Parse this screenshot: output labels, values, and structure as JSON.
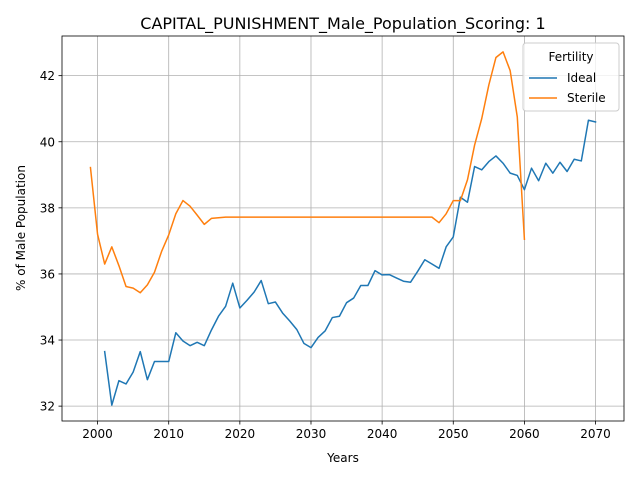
{
  "chart_data": {
    "type": "line",
    "title": "CAPITAL_PUNISHMENT_Male_Population_Scoring: 1",
    "xlabel": "Years",
    "ylabel": "% of Male Population",
    "xlim": [
      1995,
      2074
    ],
    "ylim": [
      31.55,
      43.2
    ],
    "xticks": [
      2000,
      2010,
      2020,
      2030,
      2040,
      2050,
      2060,
      2070
    ],
    "yticks": [
      32,
      34,
      36,
      38,
      40,
      42
    ],
    "grid": true,
    "legend": {
      "title": "Fertility",
      "placement": "top-right"
    },
    "series": [
      {
        "name": "Ideal",
        "color": "#1f77b4",
        "x": [
          2001,
          2002,
          2003,
          2004,
          2005,
          2006,
          2007,
          2008,
          2009,
          2010,
          2011,
          2012,
          2013,
          2014,
          2015,
          2016,
          2017,
          2018,
          2019,
          2020,
          2021,
          2022,
          2023,
          2024,
          2025,
          2026,
          2027,
          2028,
          2029,
          2030,
          2031,
          2032,
          2033,
          2034,
          2035,
          2036,
          2037,
          2038,
          2039,
          2040,
          2041,
          2042,
          2043,
          2044,
          2045,
          2046,
          2047,
          2048,
          2049,
          2050,
          2051,
          2052,
          2053,
          2054,
          2055,
          2056,
          2057,
          2058,
          2059,
          2060,
          2061,
          2062,
          2063,
          2064,
          2065,
          2066,
          2067,
          2068,
          2069,
          2070
        ],
        "y": [
          33.65,
          32.03,
          32.77,
          32.67,
          33.03,
          33.65,
          32.8,
          33.35,
          33.35,
          33.35,
          34.22,
          33.97,
          33.83,
          33.93,
          33.83,
          34.3,
          34.72,
          35.02,
          35.72,
          34.97,
          35.2,
          35.45,
          35.8,
          35.1,
          35.15,
          34.82,
          34.58,
          34.32,
          33.9,
          33.77,
          34.08,
          34.28,
          34.68,
          34.72,
          35.13,
          35.27,
          35.65,
          35.65,
          36.1,
          35.97,
          35.98,
          35.88,
          35.78,
          35.75,
          36.08,
          36.43,
          36.3,
          36.17,
          36.82,
          37.12,
          38.32,
          38.17,
          39.25,
          39.15,
          39.4,
          39.57,
          39.35,
          39.05,
          38.98,
          38.55,
          39.2,
          38.82,
          39.35,
          39.05,
          39.38,
          39.1,
          39.47,
          39.42,
          40.65,
          40.6
        ]
      },
      {
        "name": "Sterile",
        "color": "#ff7f0e",
        "x": [
          1999,
          2000,
          2001,
          2002,
          2003,
          2004,
          2005,
          2006,
          2007,
          2008,
          2009,
          2010,
          2011,
          2012,
          2013,
          2014,
          2015,
          2016,
          2017,
          2018,
          2019,
          2020,
          2021,
          2022,
          2023,
          2024,
          2025,
          2026,
          2027,
          2028,
          2029,
          2030,
          2031,
          2032,
          2033,
          2034,
          2035,
          2036,
          2037,
          2038,
          2039,
          2040,
          2041,
          2042,
          2043,
          2044,
          2045,
          2046,
          2047,
          2048,
          2049,
          2050,
          2051,
          2052,
          2053,
          2054,
          2055,
          2056,
          2057,
          2058,
          2059,
          2060
        ],
        "y": [
          39.22,
          37.2,
          36.3,
          36.82,
          36.25,
          35.62,
          35.57,
          35.43,
          35.67,
          36.05,
          36.68,
          37.18,
          37.82,
          38.22,
          38.05,
          37.78,
          37.5,
          37.68,
          37.7,
          37.72,
          37.72,
          37.72,
          37.72,
          37.72,
          37.72,
          37.72,
          37.72,
          37.72,
          37.72,
          37.72,
          37.72,
          37.72,
          37.72,
          37.72,
          37.72,
          37.72,
          37.72,
          37.72,
          37.72,
          37.72,
          37.72,
          37.72,
          37.72,
          37.72,
          37.72,
          37.72,
          37.72,
          37.72,
          37.72,
          37.55,
          37.82,
          38.22,
          38.22,
          38.85,
          39.9,
          40.7,
          41.72,
          42.55,
          42.72,
          42.15,
          40.75,
          37.05
        ]
      }
    ]
  }
}
